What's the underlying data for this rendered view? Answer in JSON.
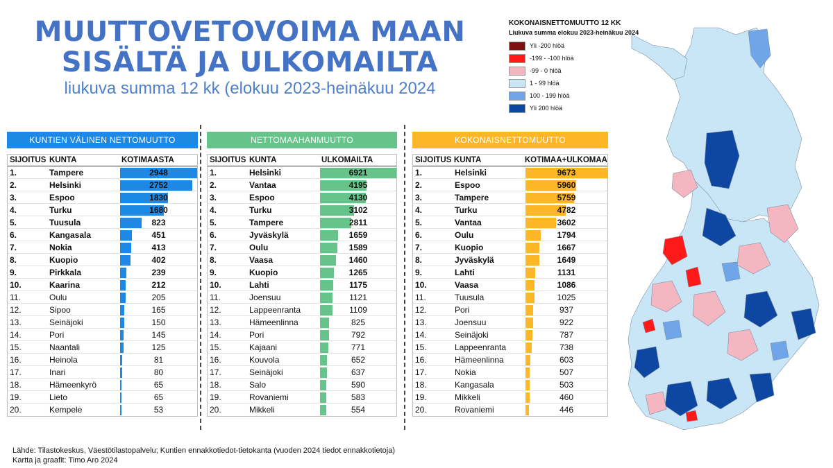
{
  "header": {
    "title_line1": "MUUTTOVETOVOIMA MAAN",
    "title_line2": "SISÄLTÄ JA ULKOMAILTA",
    "subtitle": "liukuva summa 12 kk  (elokuu 2023-heinäkuu 2024"
  },
  "colors": {
    "domestic": "#1e88e5",
    "immigration": "#66c38a",
    "total": "#fdb726",
    "title": "#4472c4"
  },
  "chart_data": [
    {
      "type": "bar",
      "title": "KUNTIEN VÄLINEN NETTOMUUTTO",
      "columns": [
        "SIJOITUS",
        "KUNTA",
        "KOTIMAASTA"
      ],
      "ranks": [
        "1.",
        "2.",
        "3.",
        "4.",
        "5.",
        "6.",
        "7.",
        "8.",
        "9.",
        "10.",
        "11.",
        "12.",
        "13.",
        "14.",
        "15.",
        "16.",
        "17.",
        "18.",
        "19.",
        "20."
      ],
      "categories": [
        "Tampere",
        "Helsinki",
        "Espoo",
        "Turku",
        "Tuusula",
        "Kangasala",
        "Nokia",
        "Kuopio",
        "Pirkkala",
        "Kaarina",
        "Oulu",
        "Sipoo",
        "Seinäjoki",
        "Pori",
        "Naantali",
        "Heinola",
        "Inari",
        "Hämeenkyrö",
        "Lieto",
        "Kempele"
      ],
      "values": [
        2948,
        2752,
        1830,
        1680,
        823,
        451,
        413,
        402,
        239,
        212,
        205,
        165,
        150,
        145,
        125,
        81,
        80,
        65,
        65,
        53
      ],
      "bold_count": 10
    },
    {
      "type": "bar",
      "title": "NETTOMAAHANMUUTTO",
      "columns": [
        "SIJOITUS",
        "KUNTA",
        "ULKOMAILTA"
      ],
      "ranks": [
        "1.",
        "2.",
        "3.",
        "4.",
        "5.",
        "6.",
        "7.",
        "8.",
        "9.",
        "10.",
        "11.",
        "12.",
        "13.",
        "14.",
        "15.",
        "16.",
        "17.",
        "18.",
        "19.",
        "20."
      ],
      "categories": [
        "Helsinki",
        "Vantaa",
        "Espoo",
        "Turku",
        "Tampere",
        "Jyväskylä",
        "Oulu",
        "Vaasa",
        "Kuopio",
        "Lahti",
        "Joensuu",
        "Lappeenranta",
        "Hämeenlinna",
        "Pori",
        "Kajaani",
        "Kouvola",
        "Seinäjoki",
        "Salo",
        "Rovaniemi",
        "Mikkeli"
      ],
      "values": [
        6921,
        4195,
        4130,
        3102,
        2811,
        1659,
        1589,
        1460,
        1265,
        1175,
        1121,
        1109,
        825,
        792,
        771,
        652,
        637,
        590,
        583,
        554
      ],
      "bold_count": 10
    },
    {
      "type": "bar",
      "title": "KOKONAISNETTOMUUTTO",
      "columns": [
        "SIJOITUS",
        "KUNTA",
        "KOTIMAA+ULKOMAA"
      ],
      "ranks": [
        "1.",
        "2.",
        "3.",
        "4.",
        "5.",
        "6.",
        "7.",
        "8.",
        "9.",
        "10.",
        "11.",
        "12.",
        "13.",
        "14.",
        "15.",
        "16.",
        "17.",
        "18.",
        "19.",
        "20."
      ],
      "categories": [
        "Helsinki",
        "Espoo",
        "Tampere",
        "Turku",
        "Vantaa",
        "Oulu",
        "Kuopio",
        "Jyväskylä",
        "Lahti",
        "Vaasa",
        "Tuusula",
        "Pori",
        "Joensuu",
        "Seinäjoki",
        "Lappeenranta",
        "Hämeenlinna",
        "Nokia",
        "Kangasala",
        "Mikkeli",
        "Rovaniemi"
      ],
      "values": [
        9673,
        5960,
        5759,
        4782,
        3602,
        1794,
        1667,
        1649,
        1131,
        1086,
        1025,
        937,
        922,
        787,
        738,
        603,
        507,
        503,
        460,
        446
      ],
      "bold_count": 10
    }
  ],
  "map": {
    "legend_title": "KOKONAISNETTOMUUTTO 12 KK",
    "legend_subtitle": "Liukuva summa elokuu 2023-heinäkuu 2024",
    "legend": [
      {
        "label": "Yli -200 hlöä",
        "color": "#7b1010"
      },
      {
        "label": "-199 - -100 hlöä",
        "color": "#ff1a1a"
      },
      {
        "label": "-99 - 0 hlöä",
        "color": "#f4b6c0"
      },
      {
        "label": "1 - 99 hlöä",
        "color": "#c9e6f7"
      },
      {
        "label": "100 - 199 hlöä",
        "color": "#6fa6ea"
      },
      {
        "label": "Yli 200 hlöä",
        "color": "#0d47a1"
      }
    ]
  },
  "footer": {
    "line1": "Lähde: Tilastokeskus, Väestötilastopalvelu; Kuntien ennakkotiedot-tietokanta (vuoden 2024 tiedot ennakkotietoja)",
    "line2": "Kartta ja graafit: Timo Aro 2024"
  }
}
